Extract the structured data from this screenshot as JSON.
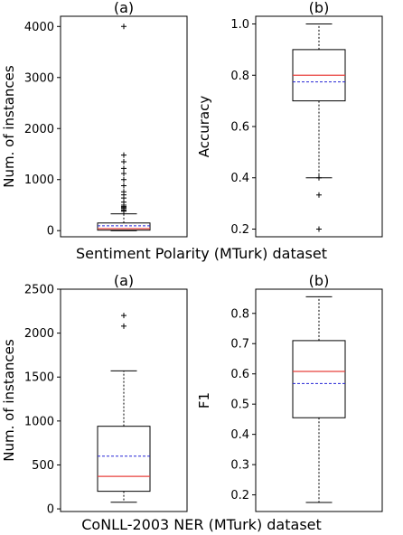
{
  "captions": {
    "top": "Sentiment Polarity (MTurk) dataset",
    "bottom": "CoNLL-2003 NER (MTurk) dataset"
  },
  "colors": {
    "median": "#e8413c",
    "mean": "#2525d6",
    "box": "#000000"
  },
  "chart_data": [
    {
      "type": "box",
      "title": "(a)",
      "ylabel": "Num. of instances",
      "ylim": [
        -120,
        4200
      ],
      "yticks": [
        0,
        1000,
        2000,
        3000,
        4000
      ],
      "box": {
        "q1": 10,
        "median": 40,
        "mean": 95,
        "q3": 150,
        "whisker_low": 0,
        "whisker_high": 330,
        "outliers": [
          4000,
          1480,
          1350,
          1220,
          1120,
          1000,
          880,
          760,
          700,
          640,
          560,
          500,
          470,
          450,
          430,
          400,
          380
        ]
      }
    },
    {
      "type": "box",
      "title": "(b)",
      "ylabel": "Accuracy",
      "ylim": [
        0.17,
        1.03
      ],
      "yticks": [
        0.2,
        0.4,
        0.6,
        0.8,
        1.0
      ],
      "tick_format": 1,
      "box": {
        "q1": 0.7,
        "median": 0.8,
        "mean": 0.774,
        "q3": 0.9,
        "whisker_low": 0.4,
        "whisker_high": 1.0,
        "outliers": [
          0.4,
          0.333,
          0.2,
          0.2
        ]
      }
    },
    {
      "type": "box",
      "title": "(a)",
      "ylabel": "Num. of instances",
      "ylim": [
        -30,
        2500
      ],
      "yticks": [
        0,
        500,
        1000,
        1500,
        2000,
        2500
      ],
      "box": {
        "q1": 200,
        "median": 370,
        "mean": 600,
        "q3": 940,
        "whisker_low": 75,
        "whisker_high": 1570,
        "outliers": [
          2200,
          2080
        ]
      }
    },
    {
      "type": "box",
      "title": "(b)",
      "ylabel": "F1",
      "ylim": [
        0.145,
        0.88
      ],
      "yticks": [
        0.2,
        0.3,
        0.4,
        0.5,
        0.6,
        0.7,
        0.8
      ],
      "tick_format": 1,
      "box": {
        "q1": 0.455,
        "median": 0.608,
        "mean": 0.568,
        "q3": 0.71,
        "whisker_low": 0.175,
        "whisker_high": 0.855,
        "outliers": []
      }
    }
  ]
}
